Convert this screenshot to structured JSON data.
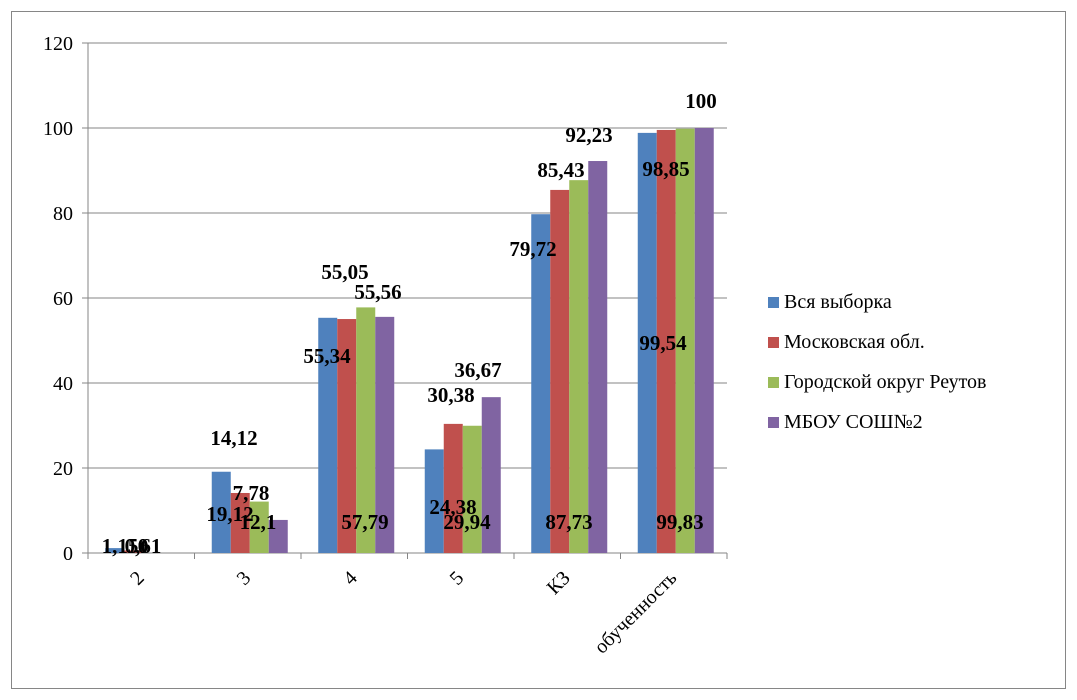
{
  "chart_data": {
    "type": "bar",
    "categories": [
      "2",
      "3",
      "4",
      "5",
      "КЗ",
      "обученность"
    ],
    "series": [
      {
        "name": "Вся выборка",
        "color": "#4F81BD",
        "values": [
          1.15,
          19.12,
          55.34,
          24.38,
          79.72,
          98.85
        ]
      },
      {
        "name": "Московская обл.",
        "color": "#C0504D",
        "values": [
          0.61,
          14.12,
          55.05,
          30.38,
          85.43,
          99.54
        ]
      },
      {
        "name": "Городской округ Реутов",
        "color": "#9BBB59",
        "values": [
          0,
          12.1,
          57.79,
          29.94,
          87.73,
          99.83
        ]
      },
      {
        "name": "МБОУ СОШ№2",
        "color": "#8064A2",
        "values": [
          0,
          7.78,
          55.56,
          36.67,
          92.23,
          100
        ]
      }
    ],
    "data_labels": [
      [
        "1,15",
        "19,12",
        "55,34",
        "24,38",
        "79,72",
        "98,85"
      ],
      [
        "0,61",
        "14,12",
        "55,05",
        "30,38",
        "85,43",
        "99,54"
      ],
      [
        "0",
        "12,1",
        "57,79",
        "29,94",
        "87,73",
        "99,83"
      ],
      [
        "0",
        "7,78",
        "55,56",
        "36,67",
        "92,23",
        "100"
      ]
    ],
    "y_ticks": [
      "0",
      "20",
      "40",
      "60",
      "80",
      "100",
      "120"
    ],
    "ylim": [
      0,
      120
    ],
    "grid": "horizontal",
    "legend_position": "right",
    "title": "",
    "xlabel": "",
    "ylabel": ""
  }
}
